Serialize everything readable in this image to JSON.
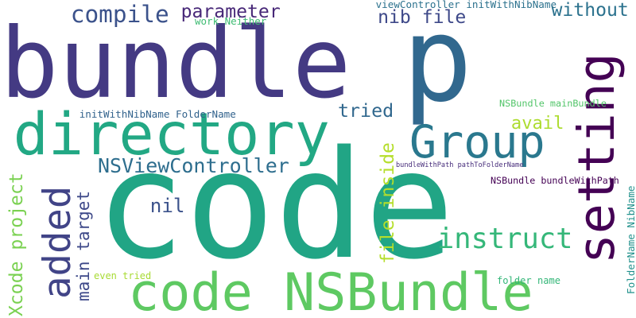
{
  "words": [
    {
      "text": "bundle",
      "color": "#443a83",
      "vertical": false
    },
    {
      "text": "p",
      "color": "#31688e",
      "vertical": false
    },
    {
      "text": "code",
      "color": "#21a585",
      "vertical": false
    },
    {
      "text": "directory",
      "color": "#22a884",
      "vertical": false
    },
    {
      "text": "code NSBundle",
      "color": "#5ec962",
      "vertical": false
    },
    {
      "text": "setting",
      "color": "#440154",
      "vertical": true
    },
    {
      "text": "Group",
      "color": "#2a788e",
      "vertical": false
    },
    {
      "text": "added",
      "color": "#414487",
      "vertical": true
    },
    {
      "text": "instruct",
      "color": "#35b779",
      "vertical": false
    },
    {
      "text": "compile",
      "color": "#3b528b",
      "vertical": false
    },
    {
      "text": "parameter",
      "color": "#482878",
      "vertical": false
    },
    {
      "text": "nib file",
      "color": "#3e4989",
      "vertical": false
    },
    {
      "text": "without",
      "color": "#2c728e",
      "vertical": false
    },
    {
      "text": "tried",
      "color": "#31688e",
      "vertical": false
    },
    {
      "text": "avail",
      "color": "#addc30",
      "vertical": false
    },
    {
      "text": "NSViewController",
      "color": "#2e6e8e",
      "vertical": false
    },
    {
      "text": "nil",
      "color": "#3b528b",
      "vertical": false
    },
    {
      "text": "Xcode project",
      "color": "#7ad151",
      "vertical": true
    },
    {
      "text": "main target",
      "color": "#3e4989",
      "vertical": true
    },
    {
      "text": "file inside",
      "color": "#b5de2b",
      "vertical": true
    },
    {
      "text": "viewController initWithNibName",
      "color": "#2c728e",
      "vertical": false
    },
    {
      "text": "work Neither",
      "color": "#3fbc73",
      "vertical": false
    },
    {
      "text": "initWithNibName FolderName",
      "color": "#33638d",
      "vertical": false
    },
    {
      "text": "NSBundle mainBundle",
      "color": "#52c569",
      "vertical": false
    },
    {
      "text": "bundleWithPath pathToFolderName",
      "color": "#472d7b",
      "vertical": false
    },
    {
      "text": "NSBundle bundleWithPath",
      "color": "#440154",
      "vertical": false
    },
    {
      "text": "folder name",
      "color": "#35b779",
      "vertical": false
    },
    {
      "text": "even tried",
      "color": "#a8db34",
      "vertical": false
    },
    {
      "text": "FolderName NibName",
      "color": "#21918c",
      "vertical": true
    }
  ]
}
